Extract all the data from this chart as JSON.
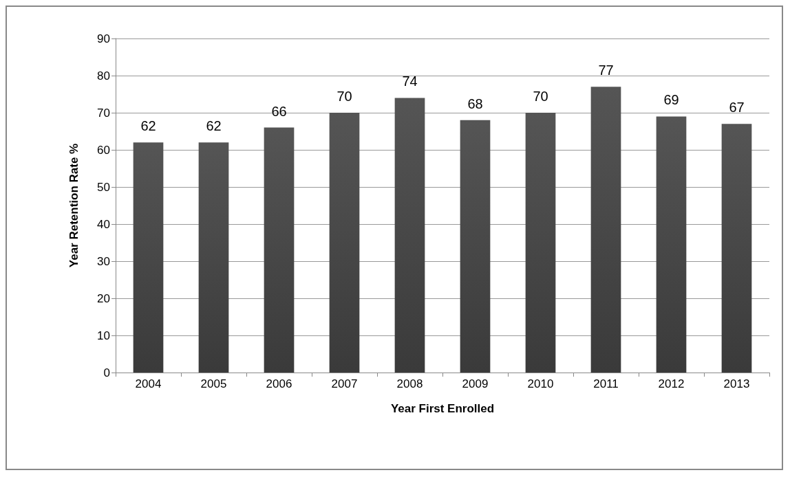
{
  "chart_data": {
    "type": "bar",
    "xlabel": "Year First Enrolled",
    "ylabel": "Year Retention Rate %",
    "categories": [
      "2004",
      "2005",
      "2006",
      "2007",
      "2008",
      "2009",
      "2010",
      "2011",
      "2012",
      "2013"
    ],
    "values": [
      62,
      62,
      66,
      70,
      74,
      68,
      70,
      77,
      69,
      67
    ],
    "color": "#555555",
    "ylim": [
      0,
      90
    ],
    "yticks": [
      0,
      10,
      20,
      30,
      40,
      50,
      60,
      70,
      80,
      90
    ],
    "grid": "y",
    "data_labels": true
  }
}
